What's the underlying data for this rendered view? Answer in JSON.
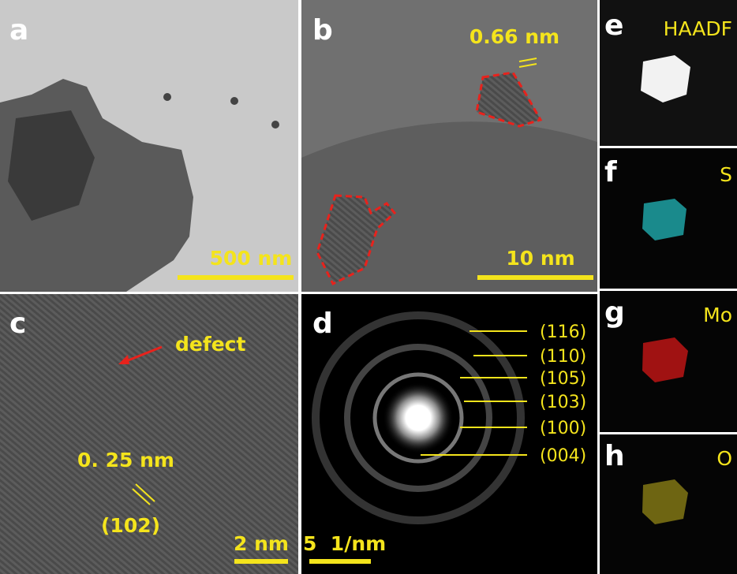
{
  "panels": [
    {
      "label": "a",
      "scale_bar": "500 nm"
    },
    {
      "label": "b",
      "scale_bar": "10 nm",
      "annotations": [
        "0.66 nm"
      ]
    },
    {
      "label": "c",
      "scale_bar": "2 nm",
      "annotations": [
        "defect",
        "0. 25 nm",
        "(102)"
      ]
    },
    {
      "label": "d",
      "scale_bar": "5  1/nm",
      "rings": [
        "(116)",
        "(110)",
        "(105)",
        "(103)",
        "(100)",
        "(004)"
      ]
    },
    {
      "label": "e",
      "channel": "HAADF"
    },
    {
      "label": "f",
      "channel": "S"
    },
    {
      "label": "g",
      "channel": "Mo"
    },
    {
      "label": "h",
      "channel": "O"
    }
  ]
}
